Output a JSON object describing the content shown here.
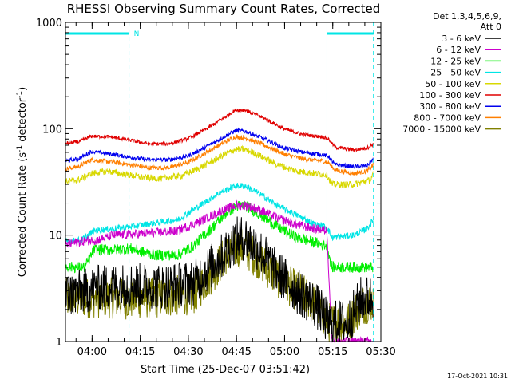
{
  "chart_data": {
    "type": "line",
    "title": "RHESSI Observing Summary Count Rates, Corrected",
    "xlabel": "Start Time (25-Dec-07 03:51:42)",
    "ylabel_main": "Corrected Count Rate (s",
    "ylabel_sup1": "-1",
    "ylabel_mid": " detector",
    "ylabel_sup2": "-1",
    "ylabel_end": ")",
    "x_range_min": [
      0,
      98.3
    ],
    "y_log": true,
    "ylim": [
      1,
      1000
    ],
    "y_ticks": [
      {
        "value": 1,
        "label": "1"
      },
      {
        "value": 10,
        "label": "10"
      },
      {
        "value": 100,
        "label": "100"
      },
      {
        "value": 1000,
        "label": "1000"
      }
    ],
    "x_ticks": [
      {
        "value": 8.3,
        "label": "04:00"
      },
      {
        "value": 23.3,
        "label": "04:15"
      },
      {
        "value": 38.3,
        "label": "04:30"
      },
      {
        "value": 53.3,
        "label": "04:45"
      },
      {
        "value": 68.3,
        "label": "05:00"
      },
      {
        "value": 83.3,
        "label": "05:15"
      },
      {
        "value": 98.3,
        "label": "05:30"
      }
    ],
    "night_intervals": [
      {
        "start": 0,
        "end": 19.8
      },
      {
        "start": 81.5,
        "end": 96.0
      }
    ],
    "night_label": "N",
    "legend_header": [
      "Det 1,3,4,5,6,9,",
      "Att 0"
    ],
    "legend_position": "right",
    "timestamp": "17-Oct-2021 10:31",
    "series": [
      {
        "name": "3 - 6 keV",
        "color": "#000000",
        "noise": 0.5,
        "points": [
          [
            0,
            2.7
          ],
          [
            10,
            3.2
          ],
          [
            20,
            3.4
          ],
          [
            30,
            3.3
          ],
          [
            40,
            3.6
          ],
          [
            48,
            6
          ],
          [
            53,
            9
          ],
          [
            56,
            9.5
          ],
          [
            60,
            7.5
          ],
          [
            66,
            4.5
          ],
          [
            72,
            3
          ],
          [
            78,
            2.2
          ],
          [
            82,
            1.5
          ],
          [
            88,
            1.5
          ],
          [
            92,
            2.5
          ],
          [
            96,
            2.6
          ]
        ]
      },
      {
        "name": "6 - 12 keV",
        "color": "#cc00cc",
        "noise": 0.1,
        "points": [
          [
            0,
            8.0
          ],
          [
            3,
            8.5
          ],
          [
            6,
            8.8
          ],
          [
            10,
            9.0
          ],
          [
            15,
            10.0
          ],
          [
            20,
            10.2
          ],
          [
            28,
            10.5
          ],
          [
            35,
            11.0
          ],
          [
            42,
            13.5
          ],
          [
            48,
            16.5
          ],
          [
            53,
            19.0
          ],
          [
            56,
            19.0
          ],
          [
            60,
            17.5
          ],
          [
            66,
            14.5
          ],
          [
            72,
            12.5
          ],
          [
            78,
            11.5
          ],
          [
            81.5,
            11.0
          ],
          [
            83,
            1.0
          ],
          [
            92,
            1.0
          ],
          [
            96,
            1.0
          ]
        ]
      },
      {
        "name": "12 - 25 keV",
        "color": "#00ee00",
        "noise": 0.12,
        "points": [
          [
            0,
            5.0
          ],
          [
            3,
            5.0
          ],
          [
            6,
            5.0
          ],
          [
            9,
            7.3
          ],
          [
            15,
            7.3
          ],
          [
            20,
            7.5
          ],
          [
            28,
            6.5
          ],
          [
            35,
            6.5
          ],
          [
            40,
            8
          ],
          [
            46,
            12
          ],
          [
            50,
            16
          ],
          [
            53,
            18.5
          ],
          [
            56,
            19
          ],
          [
            60,
            16
          ],
          [
            66,
            12
          ],
          [
            72,
            9.5
          ],
          [
            78,
            8.5
          ],
          [
            81.5,
            8.0
          ],
          [
            83,
            5.0
          ],
          [
            90,
            5.0
          ],
          [
            96,
            5.0
          ]
        ]
      },
      {
        "name": "25 - 50 keV",
        "color": "#00e5e5",
        "noise": 0.07,
        "points": [
          [
            0,
            8.7
          ],
          [
            5,
            9.0
          ],
          [
            9,
            11.0
          ],
          [
            15,
            11.5
          ],
          [
            20,
            12
          ],
          [
            28,
            13
          ],
          [
            35,
            14
          ],
          [
            42,
            19
          ],
          [
            48,
            25
          ],
          [
            53,
            29
          ],
          [
            56,
            29
          ],
          [
            60,
            25
          ],
          [
            66,
            19
          ],
          [
            72,
            15.5
          ],
          [
            78,
            12.5
          ],
          [
            81.5,
            12.0
          ],
          [
            83,
            9.5
          ],
          [
            90,
            10
          ],
          [
            94,
            11.5
          ],
          [
            96,
            14
          ]
        ]
      },
      {
        "name": "50 - 100 keV",
        "color": "#d8d800",
        "noise": 0.07,
        "points": [
          [
            0,
            32
          ],
          [
            4,
            33
          ],
          [
            8,
            38
          ],
          [
            13,
            40
          ],
          [
            18,
            37.5
          ],
          [
            24,
            35
          ],
          [
            30,
            34
          ],
          [
            36,
            36
          ],
          [
            42,
            43
          ],
          [
            48,
            54
          ],
          [
            53,
            64
          ],
          [
            56,
            64
          ],
          [
            60,
            57
          ],
          [
            66,
            46
          ],
          [
            72,
            40
          ],
          [
            78,
            38
          ],
          [
            81.5,
            37
          ],
          [
            83,
            30
          ],
          [
            90,
            30
          ],
          [
            95,
            33
          ],
          [
            96,
            38
          ]
        ]
      },
      {
        "name": "100 - 300 keV",
        "color": "#e00000",
        "noise": 0.04,
        "points": [
          [
            0,
            73
          ],
          [
            4,
            75
          ],
          [
            8,
            85
          ],
          [
            14,
            84
          ],
          [
            20,
            78
          ],
          [
            26,
            72
          ],
          [
            32,
            72
          ],
          [
            38,
            80
          ],
          [
            44,
            100
          ],
          [
            50,
            130
          ],
          [
            53,
            150
          ],
          [
            56,
            150
          ],
          [
            62,
            125
          ],
          [
            68,
            100
          ],
          [
            74,
            88
          ],
          [
            80,
            84
          ],
          [
            82,
            80
          ],
          [
            84,
            67
          ],
          [
            90,
            63
          ],
          [
            94,
            66
          ],
          [
            96,
            72
          ]
        ]
      },
      {
        "name": "300 - 800 keV",
        "color": "#0000ee",
        "noise": 0.045,
        "points": [
          [
            0,
            50
          ],
          [
            4,
            52
          ],
          [
            8,
            61
          ],
          [
            14,
            58
          ],
          [
            20,
            54
          ],
          [
            26,
            51
          ],
          [
            32,
            51
          ],
          [
            38,
            55
          ],
          [
            44,
            68
          ],
          [
            50,
            86
          ],
          [
            53,
            96
          ],
          [
            56,
            95
          ],
          [
            62,
            80
          ],
          [
            68,
            66
          ],
          [
            74,
            60
          ],
          [
            80,
            57
          ],
          [
            82,
            55
          ],
          [
            84,
            46
          ],
          [
            90,
            44
          ],
          [
            94,
            45
          ],
          [
            96,
            52
          ]
        ]
      },
      {
        "name": "800 - 7000 keV",
        "color": "#ff7f00",
        "noise": 0.05,
        "points": [
          [
            0,
            42
          ],
          [
            4,
            44
          ],
          [
            8,
            51
          ],
          [
            14,
            49
          ],
          [
            20,
            46
          ],
          [
            26,
            43
          ],
          [
            32,
            43
          ],
          [
            38,
            48
          ],
          [
            44,
            60
          ],
          [
            50,
            76
          ],
          [
            53,
            84
          ],
          [
            56,
            82
          ],
          [
            62,
            70
          ],
          [
            68,
            58
          ],
          [
            74,
            52
          ],
          [
            80,
            50
          ],
          [
            82,
            48
          ],
          [
            84,
            41
          ],
          [
            90,
            38
          ],
          [
            94,
            40
          ],
          [
            96,
            46
          ]
        ]
      },
      {
        "name": "7000 - 15000 keV",
        "color": "#808000",
        "noise": 0.45,
        "points": [
          [
            0,
            2.5
          ],
          [
            10,
            2.6
          ],
          [
            20,
            2.5
          ],
          [
            30,
            2.6
          ],
          [
            40,
            2.8
          ],
          [
            46,
            4.5
          ],
          [
            50,
            6.5
          ],
          [
            53,
            7.5
          ],
          [
            56,
            7.5
          ],
          [
            60,
            6
          ],
          [
            66,
            4
          ],
          [
            72,
            3
          ],
          [
            78,
            2.3
          ],
          [
            82,
            1.5
          ],
          [
            88,
            1.5
          ],
          [
            92,
            2.2
          ],
          [
            96,
            2.4
          ]
        ]
      }
    ]
  }
}
